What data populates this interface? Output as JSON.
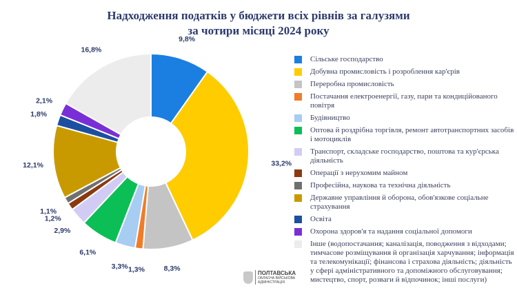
{
  "chart_data": {
    "type": "pie",
    "donut": true,
    "title": "Надходження податків у бюджети всіх рівнів за галузями за чотири місяці 2024 року",
    "title_lines": [
      "Надходження податків у бюджети всіх рівнів за галузями",
      "за чотири місяці 2024 року"
    ],
    "unit": "%",
    "legend_position": "right",
    "slices": [
      {
        "label": "Сільське господарство",
        "value": 9.8,
        "value_label": "9,8%",
        "color": "#1a7fe0"
      },
      {
        "label": "Добувна промисловість і розроблення кар'єрів",
        "value": 33.2,
        "value_label": "33,2%",
        "color": "#ffcc00"
      },
      {
        "label": "Переробна промисловість",
        "value": 8.3,
        "value_label": "8,3%",
        "color": "#c4c4c4"
      },
      {
        "label": "Постачання електроенергії, газу, пари та кондиційованого повітря",
        "value": 1.3,
        "value_label": "1,3%",
        "color": "#f07c2a"
      },
      {
        "label": "Будівництво",
        "value": 3.3,
        "value_label": "3,3%",
        "color": "#a7cdf2"
      },
      {
        "label": "Оптова й роздрібна торгівля, ремонт автотранспортних засобів і мотоциклів",
        "value": 6.1,
        "value_label": "6,1%",
        "color": "#0bbf56"
      },
      {
        "label": "Транспорт, складське господарство, поштова та кур'єрська діяльність",
        "value": 2.9,
        "value_label": "2,9%",
        "color": "#d2ccf5"
      },
      {
        "label": "Операції з нерухомим майном",
        "value": 1.2,
        "value_label": "1,2%",
        "color": "#8a3a10"
      },
      {
        "label": "Професійна, наукова та технічна діяльність",
        "value": 1.1,
        "value_label": "1,1%",
        "color": "#707070"
      },
      {
        "label": "Державне управління й оборона, обов'язкове соціальне страхування",
        "value": 12.1,
        "value_label": "12,1%",
        "color": "#c99a00"
      },
      {
        "label": "Освіта",
        "value": 1.8,
        "value_label": "1,8%",
        "color": "#1c4fa0"
      },
      {
        "label": "Охорона здоров'я та надання соціальної допомоги",
        "value": 2.1,
        "value_label": "2,1%",
        "color": "#7a2fd6"
      },
      {
        "label": "Інше (водопостачання; каналізація, поводження з відходами; тимчасове розміщування й організація харчування; інформація та телекомунікації; фінансова і страхова діяльність; діяльність у сфері адміністративного та допоміжного обслуговування; мистецтво, спорт, розваги й відпочинок; інші послуги)",
        "value": 16.8,
        "value_label": "16,8%",
        "color": "#ececec"
      }
    ]
  },
  "logo": {
    "line1": "ПОЛТАВСЬКА",
    "line2": "ОБЛАСНА ВІЙСЬКОВА",
    "line3": "АДМІНІСТРАЦІЯ"
  },
  "colors": {
    "title": "#2b3a6b",
    "value_label": "#2b3a6b"
  }
}
